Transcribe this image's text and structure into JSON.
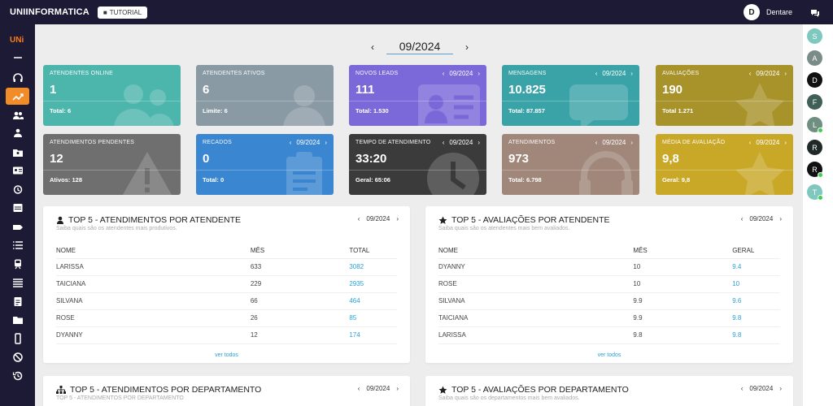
{
  "topbar": {
    "brand": "UNIINFORMATICA",
    "tutorial_label": "TUTORIAL",
    "user_initial": "D",
    "user_name": "Dentare"
  },
  "sidebar": {
    "logo_text": "UNi",
    "items": [
      {
        "icon": "menu-icon"
      },
      {
        "icon": "headset-icon"
      },
      {
        "icon": "trending-icon",
        "active": true
      },
      {
        "icon": "users-icon"
      },
      {
        "icon": "users-group-icon"
      },
      {
        "icon": "folder-user-icon"
      },
      {
        "icon": "id-card-icon"
      },
      {
        "icon": "alarm-icon"
      },
      {
        "icon": "inbox-icon"
      },
      {
        "icon": "tag-icon"
      },
      {
        "icon": "list-icon"
      },
      {
        "icon": "train-icon"
      },
      {
        "icon": "list-alt-icon"
      },
      {
        "icon": "clipboard-icon"
      },
      {
        "icon": "folder-icon"
      },
      {
        "icon": "mobile-icon"
      },
      {
        "icon": "ban-icon"
      },
      {
        "icon": "history-icon"
      }
    ]
  },
  "right_avatars": [
    {
      "initial": "S",
      "color": "#7fc8c0",
      "online": false
    },
    {
      "initial": "A",
      "color": "#7a8c88",
      "online": false
    },
    {
      "initial": "D",
      "color": "#111111",
      "online": false
    },
    {
      "initial": "F",
      "color": "#3f5f57",
      "online": false
    },
    {
      "initial": "L",
      "color": "#6f8f83",
      "online": true
    },
    {
      "initial": "R",
      "color": "#1f2a28",
      "online": false
    },
    {
      "initial": "R",
      "color": "#111111",
      "online": true
    },
    {
      "initial": "T",
      "color": "#7fc8c0",
      "online": true
    }
  ],
  "period": {
    "value": "09/2024",
    "prev": "‹",
    "next": "›"
  },
  "cards": [
    {
      "label": "ATENDENTES ONLINE",
      "value": "1",
      "footer": "Total: 6",
      "period": "",
      "color": "#4db6ac",
      "icon": "users"
    },
    {
      "label": "ATENDENTES ATIVOS",
      "value": "6",
      "footer": "Limite: 6",
      "period": "",
      "color": "#8a9aa5",
      "icon": "user"
    },
    {
      "label": "NOVOS LEADS",
      "value": "111",
      "footer": "Total: 1.530",
      "period": "09/2024",
      "color": "#7b68d9",
      "icon": "idcard"
    },
    {
      "label": "MENSAGENS",
      "value": "10.825",
      "footer": "Total: 87.857",
      "period": "09/2024",
      "color": "#3aa3a8",
      "icon": "chat"
    },
    {
      "label": "AVALIAÇÕES",
      "value": "190",
      "footer": "Total 1.271",
      "period": "09/2024",
      "color": "#a8922a",
      "icon": "star"
    },
    {
      "label": "ATENDIMENTOS PENDENTES",
      "value": "12",
      "footer": "Ativos: 128",
      "period": "",
      "color": "#6f6f6f",
      "icon": "warning"
    },
    {
      "label": "RECADOS",
      "value": "0",
      "footer": "Total: 0",
      "period": "09/2024",
      "color": "#3a86d0",
      "icon": "clipboard"
    },
    {
      "label": "TEMPO DE ATENDIMENTO",
      "value": "33:20",
      "footer": "Geral: 65:06",
      "period": "09/2024",
      "color": "#3b3b3b",
      "icon": "clock"
    },
    {
      "label": "ATENDIMENTOS",
      "value": "973",
      "footer": "Total: 6.798",
      "period": "09/2024",
      "color": "#a0877a",
      "icon": "headset"
    },
    {
      "label": "MÉDIA DE AVALIAÇÃO",
      "value": "9,8",
      "footer": "Geral: 9,8",
      "period": "09/2024",
      "color": "#c9a828",
      "icon": "star"
    }
  ],
  "panels": {
    "top_attendants": {
      "title": "TOP 5 - ATENDIMENTOS POR ATENDENTE",
      "subtitle": "Saiba quais são os atendentes mais produtivos.",
      "period": "09/2024",
      "headers": [
        "NOME",
        "MÊS",
        "TOTAL"
      ],
      "rows": [
        [
          "LARISSA",
          "633",
          "3082"
        ],
        [
          "TAICIANA",
          "229",
          "2935"
        ],
        [
          "SILVANA",
          "66",
          "464"
        ],
        [
          "ROSE",
          "26",
          "85"
        ],
        [
          "DYANNY",
          "12",
          "174"
        ]
      ],
      "more": "ver todos"
    },
    "top_ratings": {
      "title": "TOP 5 - AVALIAÇÕES POR ATENDENTE",
      "subtitle": "Saiba quais são os atendentes mais bem avaliados.",
      "period": "09/2024",
      "headers": [
        "NOME",
        "MÊS",
        "GERAL"
      ],
      "rows": [
        [
          "DYANNY",
          "10",
          "9.4"
        ],
        [
          "ROSE",
          "10",
          "10"
        ],
        [
          "SILVANA",
          "9.9",
          "9.6"
        ],
        [
          "TAICIANA",
          "9.9",
          "9.8"
        ],
        [
          "LARISSA",
          "9.8",
          "9.8"
        ]
      ],
      "more": "ver todos"
    },
    "top_departments": {
      "title": "TOP 5 - ATENDIMENTOS POR DEPARTAMENTO",
      "subtitle": "TOP 5 - ATENDIMENTOS POR DEPARTAMENTO",
      "period": "09/2024"
    },
    "top_department_ratings": {
      "title": "TOP 5 - AVALIAÇÕES POR DEPARTAMENTO",
      "subtitle": "Saiba quais são os departamentos mais bem avaliados.",
      "period": "09/2024"
    }
  }
}
